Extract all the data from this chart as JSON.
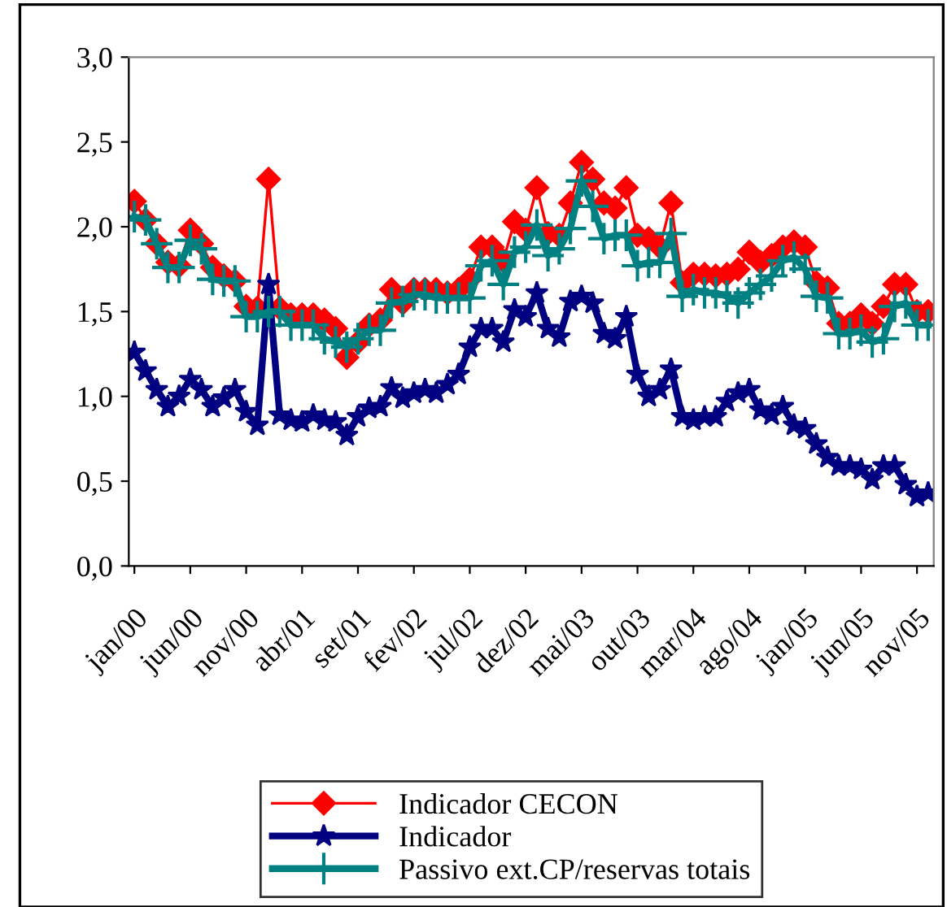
{
  "chart_data": {
    "type": "line",
    "categories": [
      "jan/00",
      null,
      null,
      null,
      null,
      "jun/00",
      null,
      null,
      null,
      null,
      "nov/00",
      null,
      null,
      null,
      null,
      "abr/01",
      null,
      null,
      null,
      null,
      "set/01",
      null,
      null,
      null,
      null,
      "fev/02",
      null,
      null,
      null,
      null,
      "jul/02",
      null,
      null,
      null,
      null,
      "dez/02",
      null,
      null,
      null,
      null,
      "mai/03",
      null,
      null,
      null,
      null,
      "out/03",
      null,
      null,
      null,
      null,
      "mar/04",
      null,
      null,
      null,
      null,
      "ago/04",
      null,
      null,
      null,
      null,
      "jan/05",
      null,
      null,
      null,
      null,
      "jun/05",
      null,
      null,
      null,
      null,
      "nov/05",
      null
    ],
    "ylim": [
      0,
      3
    ],
    "yticks": [
      {
        "value": 0,
        "label": "0,0"
      },
      {
        "value": 0.5,
        "label": "0,5"
      },
      {
        "value": 1,
        "label": "1,0"
      },
      {
        "value": 1.5,
        "label": "1,5"
      },
      {
        "value": 2,
        "label": "2,0"
      },
      {
        "value": 2.5,
        "label": "2,5"
      },
      {
        "value": 3,
        "label": "3,0"
      }
    ],
    "grid": false,
    "legend": "bottom",
    "series": [
      {
        "name": "Indicador CECON",
        "color": "#ff0000",
        "marker": "diamond",
        "values": [
          2.15,
          2.04,
          1.9,
          1.79,
          1.77,
          1.98,
          1.9,
          1.76,
          1.71,
          1.68,
          1.53,
          1.52,
          2.28,
          1.52,
          1.48,
          1.48,
          1.48,
          1.45,
          1.4,
          1.23,
          1.32,
          1.42,
          1.45,
          1.63,
          1.55,
          1.63,
          1.63,
          1.63,
          1.61,
          1.63,
          1.69,
          1.88,
          1.88,
          1.8,
          2.03,
          1.98,
          2.23,
          1.96,
          1.95,
          2.14,
          2.38,
          2.28,
          2.14,
          2.11,
          2.23,
          1.95,
          1.93,
          1.88,
          2.14,
          1.67,
          1.72,
          1.72,
          1.71,
          1.72,
          1.75,
          1.85,
          1.79,
          1.83,
          1.88,
          1.91,
          1.88,
          1.67,
          1.64,
          1.43,
          1.43,
          1.48,
          1.43,
          1.53,
          1.66,
          1.66,
          1.5,
          1.5
        ]
      },
      {
        "name": "Indicador",
        "color": "#000080",
        "marker": "star",
        "values": [
          1.26,
          1.15,
          1.04,
          0.94,
          1.0,
          1.1,
          1.04,
          0.94,
          0.99,
          1.04,
          0.91,
          0.83,
          1.66,
          0.89,
          0.86,
          0.85,
          0.89,
          0.86,
          0.85,
          0.77,
          0.88,
          0.93,
          0.94,
          1.05,
          0.99,
          1.02,
          1.04,
          1.02,
          1.07,
          1.13,
          1.29,
          1.4,
          1.4,
          1.32,
          1.51,
          1.47,
          1.61,
          1.4,
          1.35,
          1.56,
          1.59,
          1.55,
          1.37,
          1.34,
          1.47,
          1.13,
          1.0,
          1.04,
          1.16,
          0.88,
          0.86,
          0.88,
          0.88,
          0.97,
          1.02,
          1.04,
          0.92,
          0.89,
          0.94,
          0.83,
          0.81,
          0.72,
          0.64,
          0.59,
          0.59,
          0.57,
          0.51,
          0.59,
          0.59,
          0.48,
          0.41,
          0.43
        ]
      },
      {
        "name": "Passivo ext.CP/reservas totais",
        "color": "#008080",
        "marker": "cross",
        "values": [
          2.06,
          2.04,
          1.9,
          1.76,
          1.76,
          1.92,
          1.87,
          1.69,
          1.68,
          1.68,
          1.47,
          1.47,
          1.5,
          1.5,
          1.42,
          1.42,
          1.42,
          1.34,
          1.32,
          1.29,
          1.34,
          1.39,
          1.39,
          1.55,
          1.56,
          1.6,
          1.6,
          1.58,
          1.58,
          1.58,
          1.58,
          1.77,
          1.8,
          1.66,
          1.85,
          1.88,
          2.01,
          1.83,
          1.87,
          1.99,
          2.27,
          2.12,
          1.93,
          1.95,
          1.95,
          1.77,
          1.79,
          1.79,
          1.96,
          1.59,
          1.63,
          1.61,
          1.61,
          1.59,
          1.55,
          1.61,
          1.66,
          1.71,
          1.8,
          1.82,
          1.75,
          1.59,
          1.58,
          1.37,
          1.37,
          1.39,
          1.32,
          1.34,
          1.53,
          1.55,
          1.42,
          1.42
        ]
      }
    ]
  }
}
